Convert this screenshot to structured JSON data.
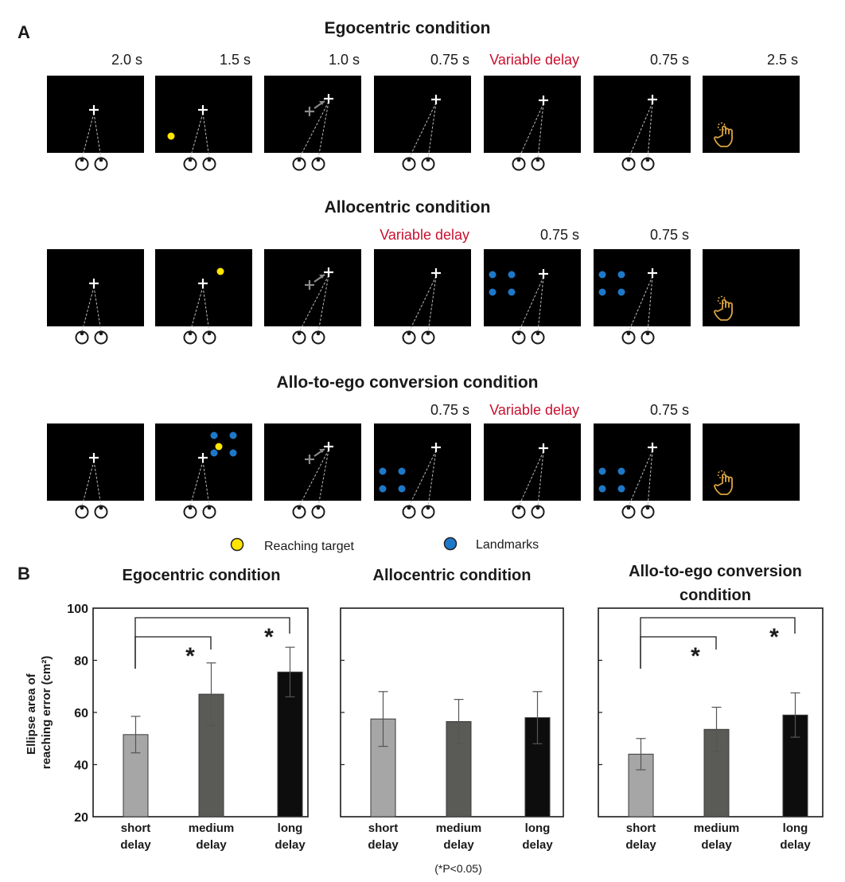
{
  "panel_a": {
    "label": "A",
    "legend": {
      "target": "Reaching target",
      "landmarks": "Landmarks"
    },
    "colors": {
      "target": "#ffe600",
      "landmark": "#1e78c8",
      "screen": "#000000",
      "delay_text": "#c8102e",
      "hand": "#d9a441"
    },
    "rows": [
      {
        "title": "Egocentric condition",
        "timings": [
          "2.0 s",
          "1.5 s",
          "1.0 s",
          "0.75 s",
          "Variable delay",
          "0.75 s",
          "2.5 s"
        ],
        "frames": [
          {
            "kind": "fix"
          },
          {
            "kind": "fix",
            "target": true
          },
          {
            "kind": "saccade"
          },
          {
            "kind": "fix"
          },
          {
            "kind": "fix"
          },
          {
            "kind": "fix"
          },
          {
            "kind": "reach"
          }
        ]
      },
      {
        "title": "Allocentric condition",
        "timings": [
          "",
          "",
          "",
          "Variable delay",
          "0.75 s",
          "0.75 s",
          ""
        ],
        "frames": [
          {
            "kind": "fix"
          },
          {
            "kind": "fix",
            "target": true
          },
          {
            "kind": "saccade"
          },
          {
            "kind": "fix"
          },
          {
            "kind": "fix",
            "landmarks": true
          },
          {
            "kind": "fix",
            "landmarks": true
          },
          {
            "kind": "reach"
          }
        ]
      },
      {
        "title": "Allo-to-ego conversion condition",
        "timings": [
          "",
          "",
          "",
          "0.75 s",
          "Variable delay",
          "0.75 s",
          ""
        ],
        "frames": [
          {
            "kind": "fix"
          },
          {
            "kind": "fix",
            "target": true,
            "landmarks": true
          },
          {
            "kind": "saccade"
          },
          {
            "kind": "fix",
            "landmarks": true
          },
          {
            "kind": "fix"
          },
          {
            "kind": "fix",
            "landmarks": true
          },
          {
            "kind": "reach"
          }
        ]
      }
    ]
  },
  "panel_b": {
    "label": "B",
    "ylabel": "Ellipse area of reaching error (cm²)",
    "footnote": "(*P<0.05)",
    "bar_colors": [
      "#a6a6a6",
      "#5a5a57",
      "#0d0d0d"
    ]
  },
  "chart_data": [
    {
      "type": "bar",
      "title": "Egocentric condition",
      "categories": [
        "short delay",
        "medium delay",
        "long delay"
      ],
      "values": [
        51.5,
        67,
        75.5
      ],
      "errors": [
        7,
        12,
        9.5
      ],
      "ylim": [
        20,
        100
      ],
      "yticks": [
        20,
        40,
        60,
        80,
        100
      ],
      "significance": [
        {
          "from": 0,
          "to": 1,
          "label": "*"
        },
        {
          "from": 0,
          "to": 2,
          "label": "*"
        }
      ]
    },
    {
      "type": "bar",
      "title": "Allocentric condition",
      "categories": [
        "short delay",
        "medium delay",
        "long delay"
      ],
      "values": [
        57.5,
        56.5,
        58
      ],
      "errors": [
        10.5,
        8.5,
        10
      ],
      "ylim": [
        20,
        100
      ],
      "yticks": [],
      "significance": []
    },
    {
      "type": "bar",
      "title": "Allo-to-ego conversion condition",
      "categories": [
        "short delay",
        "medium delay",
        "long delay"
      ],
      "values": [
        44,
        53.5,
        59
      ],
      "errors": [
        6,
        8.5,
        8.5
      ],
      "ylim": [
        20,
        100
      ],
      "yticks": [],
      "significance": [
        {
          "from": 0,
          "to": 1,
          "label": "*"
        },
        {
          "from": 0,
          "to": 2,
          "label": "*"
        }
      ]
    }
  ]
}
